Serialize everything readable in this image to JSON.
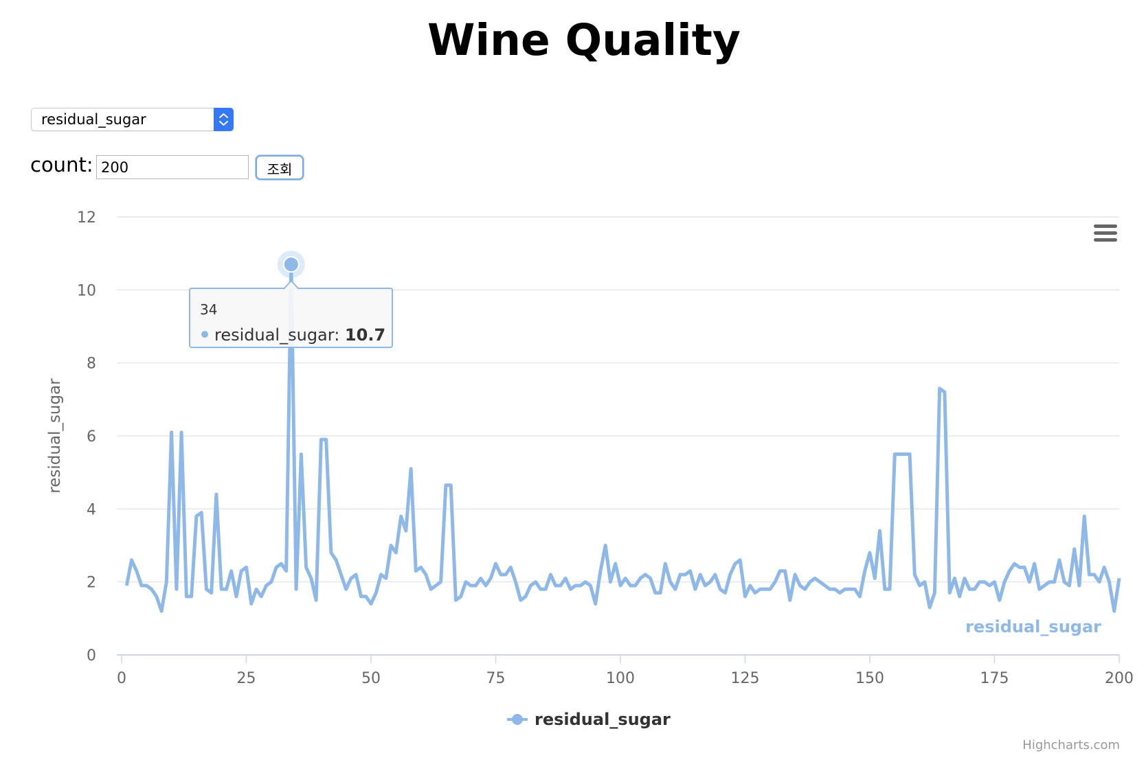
{
  "page": {
    "title": "Wine Quality"
  },
  "controls": {
    "select_value": "residual_sugar",
    "count_label": "count:",
    "count_value": "200",
    "query_button": "조회"
  },
  "tooltip": {
    "x_label": "34",
    "series_label": "residual_sugar",
    "value_label": "10.7",
    "x": 34,
    "y": 10.7
  },
  "credits": "Highcharts.com",
  "colors": {
    "series": "#8eb8e8",
    "grid": "#e6e6e6",
    "axis": "#ccd6eb",
    "label": "#666666"
  },
  "chart_data": {
    "type": "line",
    "ylabel": "residual_sugar",
    "xlabel": "",
    "xlim": [
      0,
      200
    ],
    "ylim": [
      0,
      12
    ],
    "x_ticks": [
      0,
      25,
      50,
      75,
      100,
      125,
      150,
      175,
      200
    ],
    "y_ticks": [
      0,
      2,
      4,
      6,
      8,
      10,
      12
    ],
    "grid": true,
    "legend": "bottom-center",
    "series_end_label": "residual_sugar",
    "series": [
      {
        "name": "residual_sugar",
        "x_start": 1,
        "values": [
          1.9,
          2.6,
          2.3,
          1.9,
          1.9,
          1.8,
          1.6,
          1.2,
          2.0,
          6.1,
          1.8,
          6.1,
          1.6,
          1.6,
          3.8,
          3.9,
          1.8,
          1.7,
          4.4,
          1.8,
          1.8,
          2.3,
          1.6,
          2.3,
          2.4,
          1.4,
          1.8,
          1.6,
          1.9,
          2.0,
          2.4,
          2.5,
          2.3,
          10.7,
          1.8,
          5.5,
          2.4,
          2.1,
          1.5,
          5.9,
          5.9,
          2.8,
          2.6,
          2.2,
          1.8,
          2.1,
          2.2,
          1.6,
          1.6,
          1.4,
          1.7,
          2.2,
          2.1,
          3.0,
          2.8,
          3.8,
          3.4,
          5.1,
          2.3,
          2.4,
          2.2,
          1.8,
          1.9,
          2.0,
          4.65,
          4.65,
          1.5,
          1.6,
          2.0,
          1.9,
          1.9,
          2.1,
          1.9,
          2.1,
          2.5,
          2.2,
          2.2,
          2.4,
          2.0,
          1.5,
          1.6,
          1.9,
          2.0,
          1.8,
          1.8,
          2.2,
          1.9,
          1.9,
          2.1,
          1.8,
          1.9,
          1.9,
          2.0,
          1.9,
          1.4,
          2.3,
          3.0,
          2.0,
          2.5,
          1.9,
          2.1,
          1.9,
          1.9,
          2.1,
          2.2,
          2.1,
          1.7,
          1.7,
          2.5,
          2.0,
          1.8,
          2.2,
          2.2,
          2.3,
          1.8,
          2.2,
          1.9,
          2.0,
          2.2,
          1.8,
          1.7,
          2.2,
          2.5,
          2.6,
          1.6,
          1.9,
          1.7,
          1.8,
          1.8,
          1.8,
          2.0,
          2.3,
          2.3,
          1.5,
          2.2,
          1.9,
          1.8,
          2.0,
          2.1,
          2.0,
          1.9,
          1.8,
          1.8,
          1.7,
          1.8,
          1.8,
          1.8,
          1.6,
          2.3,
          2.8,
          2.1,
          3.4,
          1.8,
          1.8,
          5.5,
          5.5,
          5.5,
          5.5,
          2.2,
          1.9,
          2.0,
          1.3,
          1.7,
          7.3,
          7.2,
          1.7,
          2.1,
          1.6,
          2.1,
          1.8,
          1.8,
          2.0,
          2.0,
          1.9,
          2.0,
          1.5,
          2.0,
          2.3,
          2.5,
          2.4,
          2.4,
          2.0,
          2.5,
          1.8,
          1.9,
          2.0,
          2.0,
          2.6,
          2.0,
          1.9,
          2.9,
          1.9,
          3.8,
          2.2,
          2.2,
          2.0,
          2.4,
          2.0,
          1.2,
          2.1
        ]
      }
    ]
  }
}
